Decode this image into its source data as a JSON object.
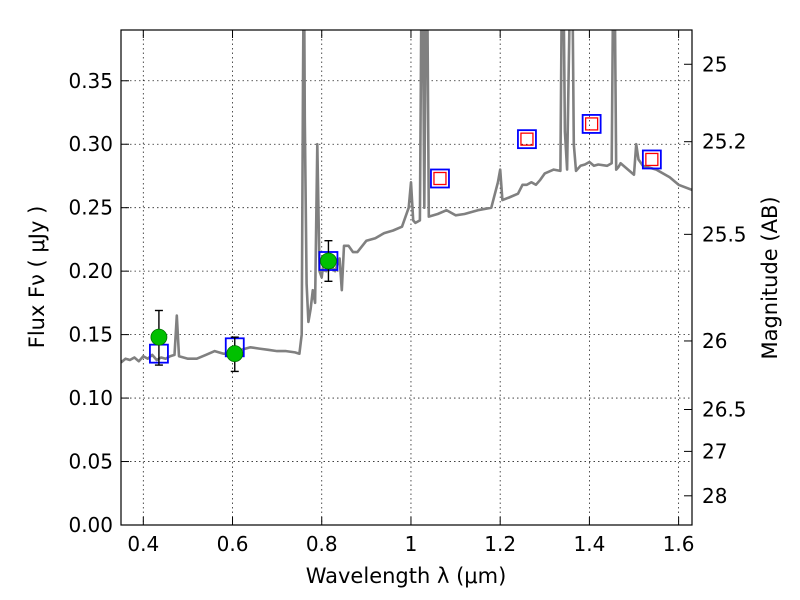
{
  "chart_data": {
    "type": "line",
    "title": "",
    "xlabel": "Wavelength  λ (μm)",
    "ylabel": "Flux  Fν  ( μJy )",
    "ylabel_right": "Magnitude (AB)",
    "xlim": [
      0.35,
      1.63
    ],
    "ylim": [
      0.0,
      0.39
    ],
    "grid": true,
    "x_ticks": [
      {
        "value": 0.4,
        "label": "0.4"
      },
      {
        "value": 0.6,
        "label": "0.6"
      },
      {
        "value": 0.8,
        "label": "0.8"
      },
      {
        "value": 1.0,
        "label": "1"
      },
      {
        "value": 1.2,
        "label": "1.2"
      },
      {
        "value": 1.4,
        "label": "1.4"
      },
      {
        "value": 1.6,
        "label": "1.6"
      }
    ],
    "y_ticks": [
      {
        "value": 0.0,
        "label": "0.00"
      },
      {
        "value": 0.05,
        "label": "0.05"
      },
      {
        "value": 0.1,
        "label": "0.10"
      },
      {
        "value": 0.15,
        "label": "0.15"
      },
      {
        "value": 0.2,
        "label": "0.20"
      },
      {
        "value": 0.25,
        "label": "0.25"
      },
      {
        "value": 0.3,
        "label": "0.30"
      },
      {
        "value": 0.35,
        "label": "0.35"
      }
    ],
    "y2_ticks": [
      {
        "flux": 0.363,
        "label": "25"
      },
      {
        "flux": 0.302,
        "label": "25.2"
      },
      {
        "flux": 0.229,
        "label": "25.5"
      },
      {
        "flux": 0.145,
        "label": "26"
      },
      {
        "flux": 0.091,
        "label": "26.5"
      },
      {
        "flux": 0.058,
        "label": "27"
      },
      {
        "flux": 0.023,
        "label": "28"
      }
    ],
    "series": [
      {
        "name": "model-spectrum",
        "style": "line",
        "color": "#808080",
        "x": [
          0.35,
          0.36,
          0.37,
          0.38,
          0.39,
          0.4,
          0.41,
          0.42,
          0.43,
          0.44,
          0.45,
          0.46,
          0.47,
          0.475,
          0.48,
          0.49,
          0.5,
          0.52,
          0.54,
          0.56,
          0.58,
          0.6,
          0.62,
          0.64,
          0.66,
          0.68,
          0.7,
          0.72,
          0.74,
          0.75,
          0.755,
          0.758,
          0.76,
          0.762,
          0.766,
          0.77,
          0.775,
          0.78,
          0.785,
          0.79,
          0.795,
          0.8,
          0.805,
          0.81,
          0.815,
          0.82,
          0.83,
          0.84,
          0.845,
          0.85,
          0.86,
          0.87,
          0.88,
          0.9,
          0.92,
          0.94,
          0.96,
          0.98,
          0.995,
          1.0,
          1.005,
          1.01,
          1.02,
          1.025,
          1.03,
          1.035,
          1.04,
          1.06,
          1.08,
          1.1,
          1.12,
          1.15,
          1.18,
          1.195,
          1.2,
          1.205,
          1.22,
          1.24,
          1.25,
          1.26,
          1.27,
          1.28,
          1.29,
          1.3,
          1.32,
          1.335,
          1.34,
          1.345,
          1.35,
          1.36,
          1.365,
          1.37,
          1.38,
          1.39,
          1.4,
          1.41,
          1.42,
          1.44,
          1.45,
          1.455,
          1.46,
          1.465,
          1.47,
          1.5,
          1.505,
          1.51,
          1.52,
          1.55,
          1.58,
          1.6,
          1.63
        ],
        "values": [
          0.128,
          0.131,
          0.13,
          0.132,
          0.129,
          0.133,
          0.131,
          0.134,
          0.13,
          0.132,
          0.131,
          0.133,
          0.134,
          0.165,
          0.133,
          0.132,
          0.131,
          0.131,
          0.134,
          0.137,
          0.135,
          0.135,
          0.138,
          0.14,
          0.139,
          0.138,
          0.137,
          0.137,
          0.136,
          0.135,
          0.15,
          0.35,
          0.46,
          0.32,
          0.19,
          0.16,
          0.17,
          0.185,
          0.175,
          0.3,
          0.2,
          0.195,
          0.21,
          0.2,
          0.21,
          0.205,
          0.2,
          0.21,
          0.185,
          0.22,
          0.22,
          0.215,
          0.215,
          0.224,
          0.226,
          0.23,
          0.232,
          0.235,
          0.25,
          0.27,
          0.24,
          0.238,
          0.24,
          0.5,
          0.25,
          0.5,
          0.243,
          0.245,
          0.248,
          0.244,
          0.245,
          0.248,
          0.25,
          0.27,
          0.28,
          0.256,
          0.258,
          0.261,
          0.268,
          0.268,
          0.27,
          0.268,
          0.272,
          0.277,
          0.28,
          0.279,
          0.5,
          0.31,
          0.28,
          0.5,
          0.3,
          0.279,
          0.283,
          0.284,
          0.286,
          0.283,
          0.284,
          0.283,
          0.285,
          0.5,
          0.28,
          0.282,
          0.285,
          0.276,
          0.3,
          0.288,
          0.283,
          0.28,
          0.274,
          0.268,
          0.264
        ]
      },
      {
        "name": "model-photometry",
        "style": "open-square",
        "color": "#0000ff",
        "x": [
          0.435,
          0.605,
          0.815,
          1.065,
          1.26,
          1.405,
          1.54
        ],
        "values": [
          0.135,
          0.14,
          0.208,
          0.273,
          0.304,
          0.316,
          0.288
        ]
      },
      {
        "name": "observed-detections",
        "style": "filled-circle",
        "color": "#00c000",
        "x": [
          0.435,
          0.605,
          0.815
        ],
        "values": [
          0.148,
          0.135,
          0.208
        ],
        "error_low": [
          0.126,
          0.121,
          0.192
        ],
        "error_high": [
          0.169,
          0.148,
          0.224
        ]
      },
      {
        "name": "observed-upper-limits",
        "style": "open-square-red",
        "color": "#ff0000",
        "x": [
          1.065,
          1.26,
          1.405,
          1.54
        ],
        "values": [
          0.273,
          0.304,
          0.316,
          0.288
        ]
      }
    ]
  }
}
